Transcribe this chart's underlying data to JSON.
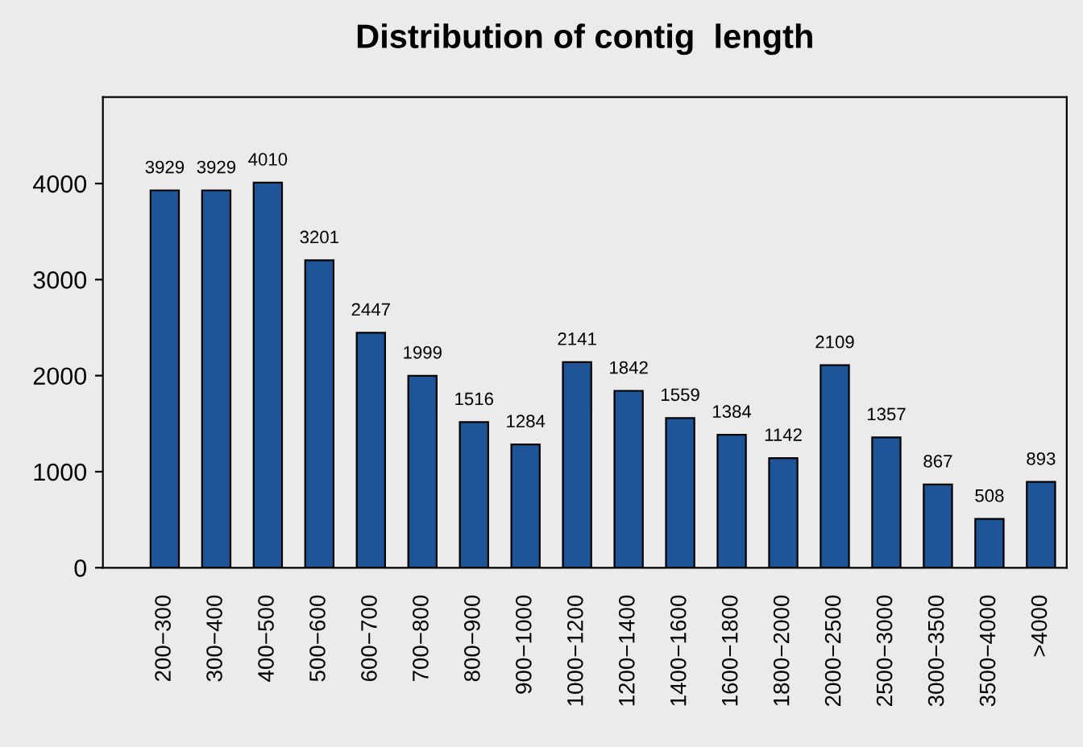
{
  "chart_data": {
    "type": "bar",
    "title": "Distribution of contig  length",
    "categories": [
      "200−300",
      "300−400",
      "400−500",
      "500−600",
      "600−700",
      "700−800",
      "800−900",
      "900−1000",
      "1000−1200",
      "1200−1400",
      "1400−1600",
      "1600−1800",
      "1800−2000",
      "2000−2500",
      "2500−3000",
      "3000−3500",
      "3500−4000",
      ">4000"
    ],
    "values": [
      3929,
      3929,
      4010,
      3201,
      2447,
      1999,
      1516,
      1284,
      2141,
      1842,
      1559,
      1384,
      1142,
      2109,
      1357,
      867,
      508,
      893
    ],
    "color": "#1f5497",
    "data_labels": true,
    "ylim": [
      0,
      4900
    ],
    "yticks": [
      0,
      1000,
      2000,
      3000,
      4000
    ],
    "grid": false
  }
}
